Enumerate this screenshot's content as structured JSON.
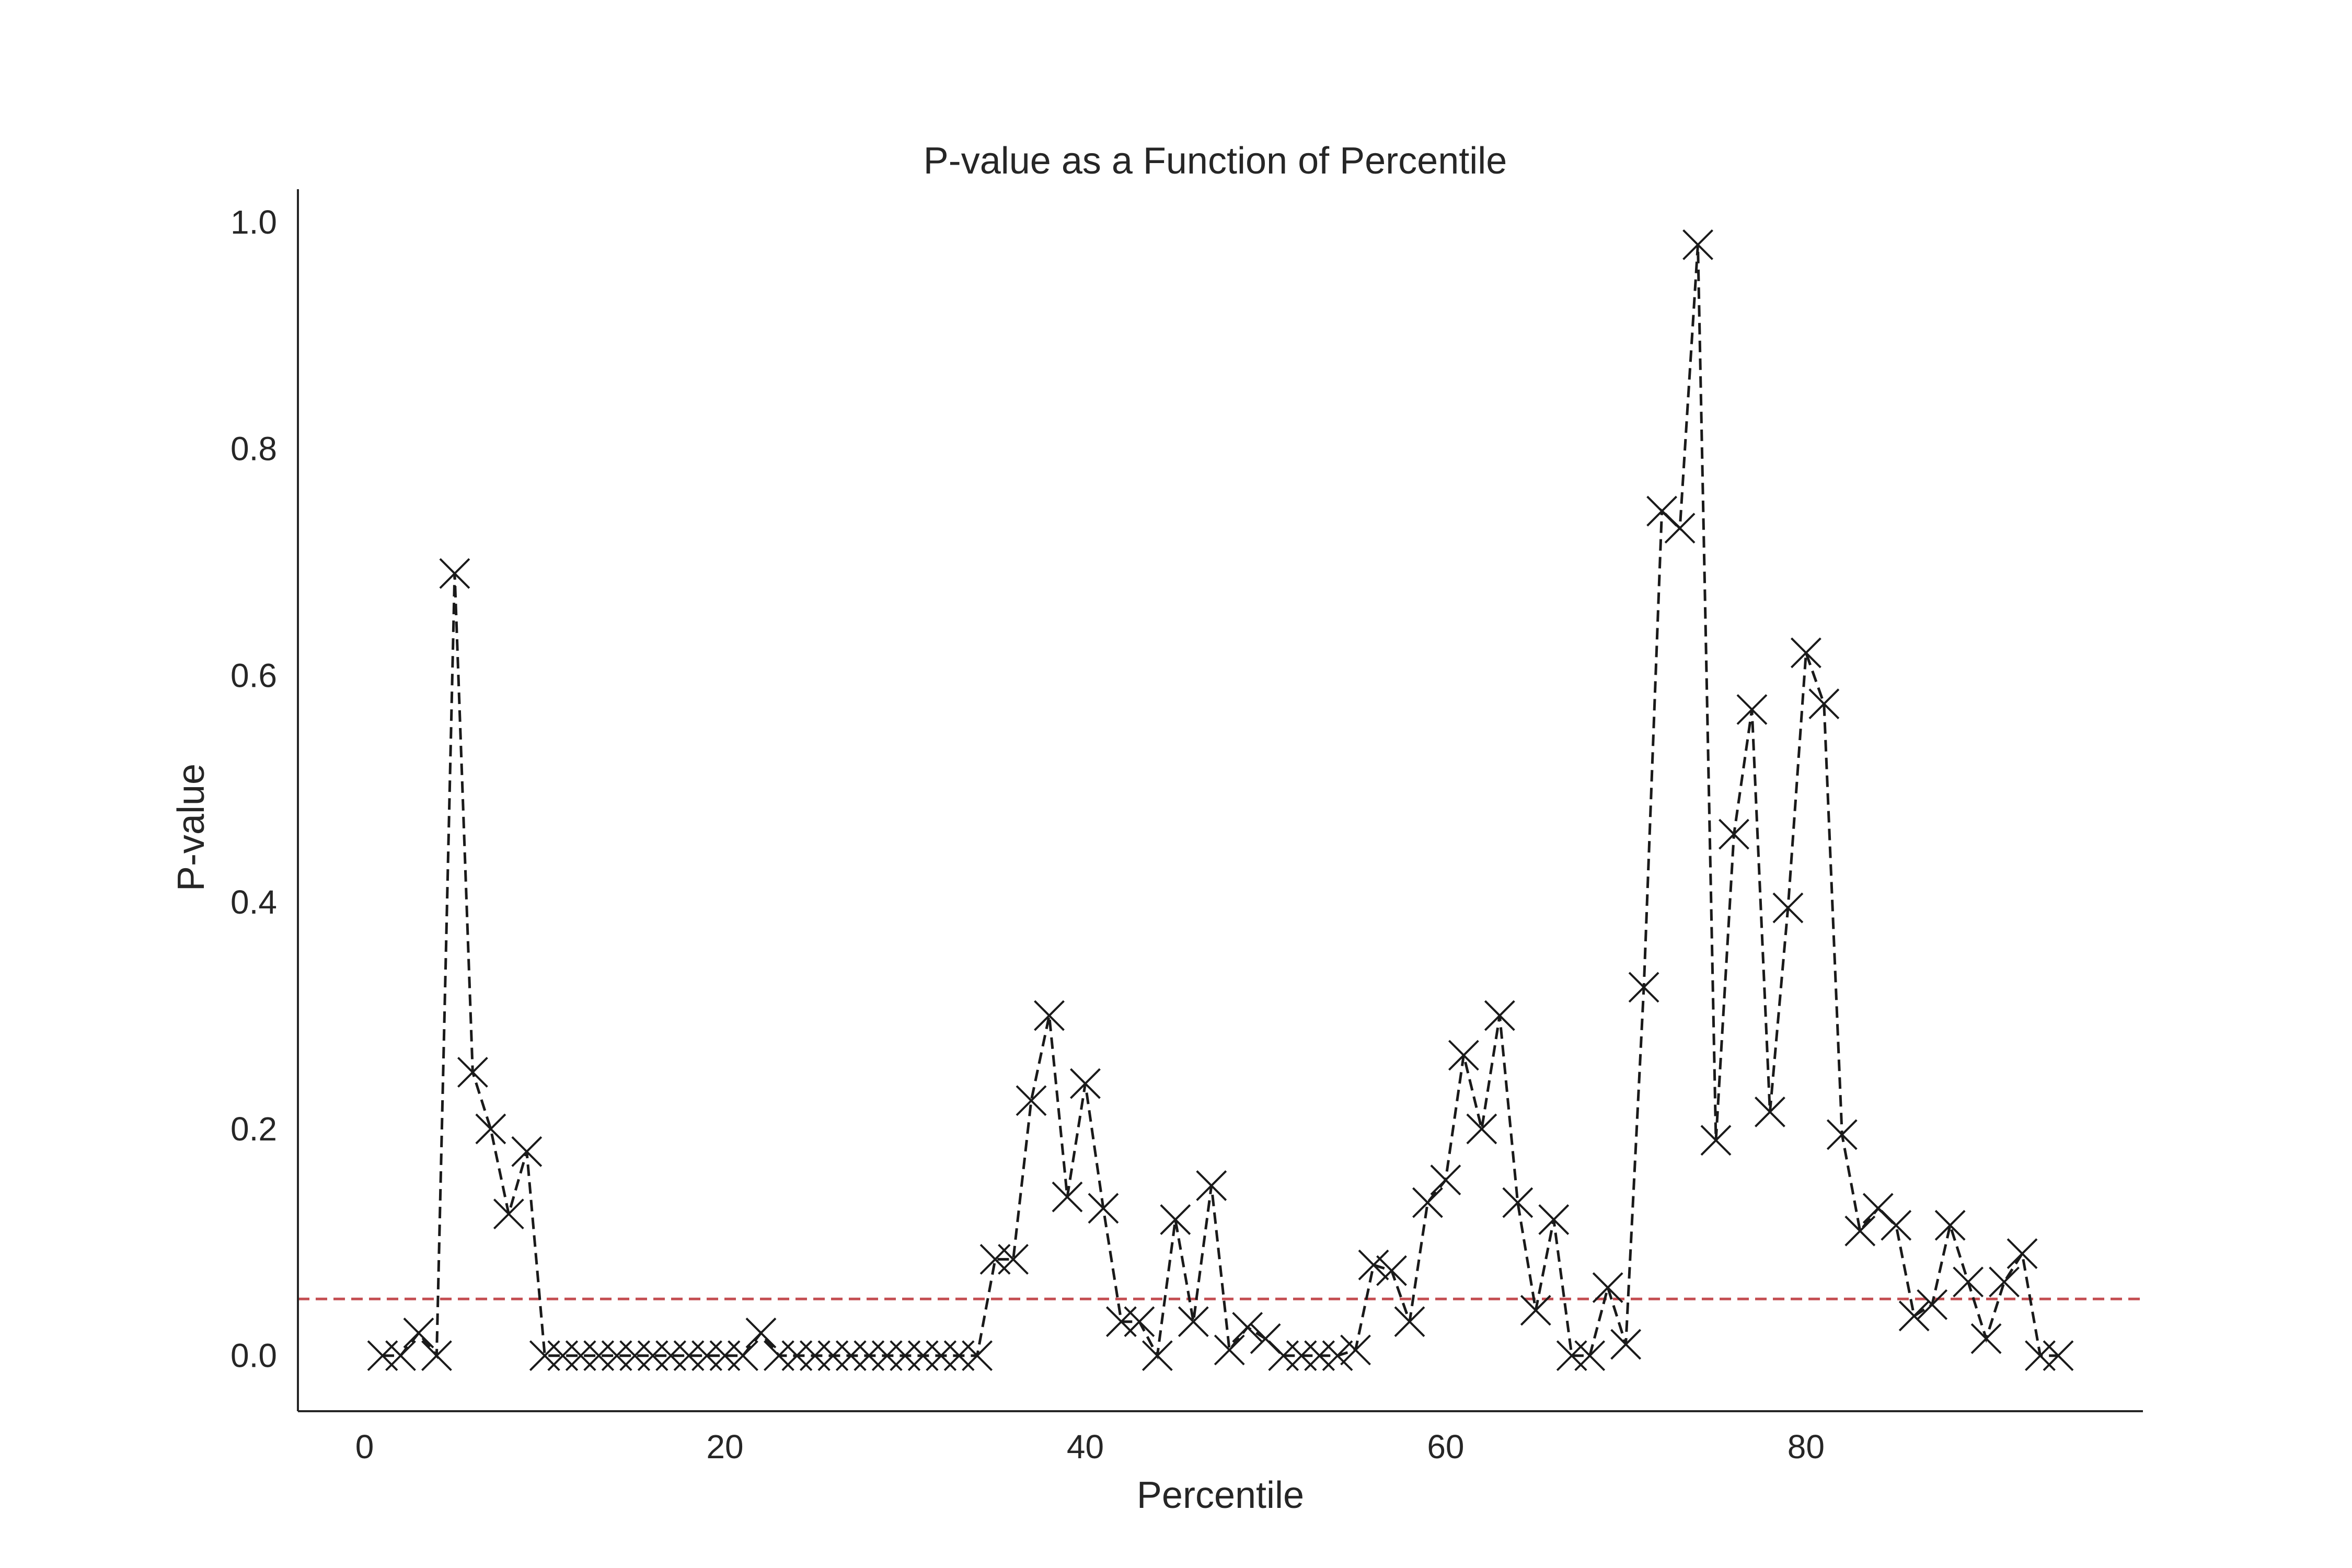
{
  "chart_data": {
    "type": "line",
    "title": "P-value as a Function of Percentile",
    "xlabel": "Percentile",
    "ylabel": "P-value",
    "xlim": [
      -3.7,
      98.7
    ],
    "ylim": [
      -0.049,
      1.029
    ],
    "xticks": [
      0,
      20,
      40,
      60,
      80
    ],
    "yticks": [
      0.0,
      0.2,
      0.4,
      0.6,
      0.8,
      1.0
    ],
    "xtick_labels": [
      "0",
      "20",
      "40",
      "60",
      "80"
    ],
    "ytick_labels": [
      "0.0",
      "0.2",
      "0.4",
      "0.6",
      "0.8",
      "1.0"
    ],
    "grid": false,
    "marker": "x",
    "line_style": "dashed",
    "threshold": {
      "value": 0.05,
      "color": "#c44e52",
      "style": "dashed"
    },
    "x": [
      1,
      2,
      3,
      4,
      5,
      6,
      7,
      8,
      9,
      10,
      11,
      12,
      13,
      14,
      15,
      16,
      17,
      18,
      19,
      20,
      21,
      22,
      23,
      24,
      25,
      26,
      27,
      28,
      29,
      30,
      31,
      32,
      33,
      34,
      35,
      36,
      37,
      38,
      39,
      40,
      41,
      42,
      43,
      44,
      45,
      46,
      47,
      48,
      49,
      50,
      51,
      52,
      53,
      54,
      55,
      56,
      57,
      58,
      59,
      60,
      61,
      62,
      63,
      64,
      65,
      66,
      67,
      68,
      69,
      70,
      71,
      72,
      73,
      74,
      75,
      76,
      77,
      78,
      79,
      80,
      81,
      82,
      83,
      84,
      85,
      86,
      87,
      88,
      89,
      90,
      91,
      92,
      93,
      94
    ],
    "y": [
      0.0,
      0.0,
      0.02,
      0.0,
      0.69,
      0.25,
      0.2,
      0.125,
      0.18,
      0.0,
      0.0,
      0.0,
      0.0,
      0.0,
      0.0,
      0.0,
      0.0,
      0.0,
      0.0,
      0.0,
      0.0,
      0.02,
      0.0,
      0.0,
      0.0,
      0.0,
      0.0,
      0.0,
      0.0,
      0.0,
      0.0,
      0.0,
      0.0,
      0.0,
      0.085,
      0.085,
      0.225,
      0.3,
      0.14,
      0.24,
      0.13,
      0.03,
      0.03,
      0.0,
      0.12,
      0.03,
      0.15,
      0.005,
      0.025,
      0.015,
      0.0,
      0.0,
      0.0,
      0.0,
      0.005,
      0.08,
      0.075,
      0.03,
      0.135,
      0.155,
      0.265,
      0.2,
      0.3,
      0.135,
      0.04,
      0.12,
      0.0,
      0.0,
      0.06,
      0.01,
      0.325,
      0.745,
      0.73,
      0.98,
      0.19,
      0.46,
      0.57,
      0.215,
      0.395,
      0.62,
      0.575,
      0.195,
      0.11,
      0.13,
      0.115,
      0.035,
      0.045,
      0.115,
      0.065,
      0.015,
      0.065,
      0.09,
      0.0,
      0.0
    ]
  }
}
